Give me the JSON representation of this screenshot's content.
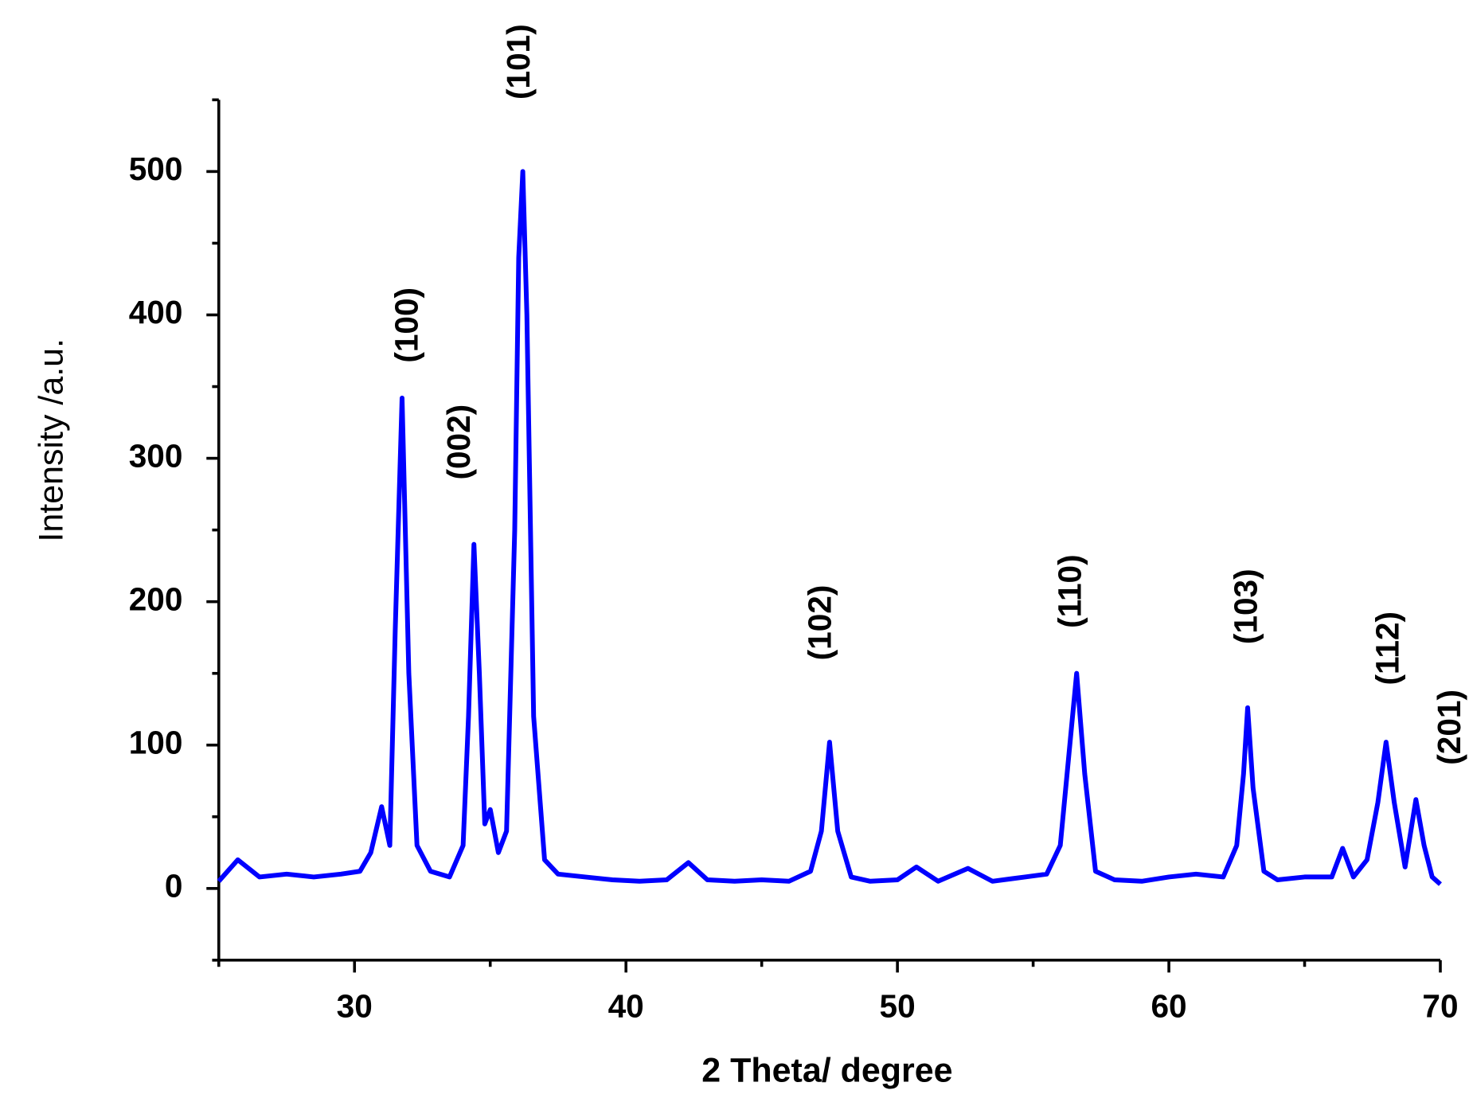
{
  "chart_data": {
    "type": "line",
    "xlabel": "2 Theta/ degree",
    "ylabel": "Intensity /a.u.",
    "x": [
      25,
      25.7,
      26.5,
      27.5,
      28.5,
      29.5,
      30.2,
      30.6,
      31.0,
      31.3,
      31.5,
      31.75,
      32.0,
      32.3,
      32.8,
      33.5,
      34.0,
      34.2,
      34.4,
      34.6,
      34.8,
      35.0,
      35.3,
      35.6,
      35.9,
      36.05,
      36.2,
      36.35,
      36.6,
      37.0,
      37.5,
      38.5,
      39.5,
      40.5,
      41.5,
      42.3,
      43.0,
      44.0,
      45.0,
      46.0,
      46.8,
      47.2,
      47.5,
      47.8,
      48.3,
      49.0,
      50.0,
      50.7,
      51.5,
      52.6,
      53.5,
      54.7,
      55.5,
      56.0,
      56.3,
      56.6,
      56.9,
      57.3,
      58.0,
      59.0,
      60.0,
      61.0,
      62.0,
      62.5,
      62.75,
      62.9,
      63.1,
      63.5,
      64.0,
      65.0,
      66.0,
      66.4,
      66.8,
      67.3,
      67.7,
      68.0,
      68.3,
      68.7,
      69.1,
      69.4,
      69.7,
      70.0
    ],
    "series": [
      {
        "color": "#0000ff",
        "values": [
          5,
          20,
          8,
          10,
          8,
          10,
          12,
          25,
          57,
          30,
          180,
          342,
          150,
          30,
          12,
          8,
          30,
          120,
          240,
          150,
          45,
          55,
          25,
          40,
          250,
          440,
          500,
          400,
          120,
          20,
          10,
          8,
          6,
          5,
          6,
          18,
          6,
          5,
          6,
          5,
          12,
          40,
          102,
          40,
          8,
          5,
          6,
          15,
          5,
          14,
          5,
          8,
          10,
          30,
          90,
          150,
          80,
          12,
          6,
          5,
          8,
          10,
          8,
          30,
          80,
          126,
          70,
          12,
          6,
          8,
          8,
          28,
          8,
          20,
          60,
          102,
          60,
          15,
          62,
          30,
          8,
          3
        ]
      }
    ],
    "annotations": [
      "(100)",
      "(002)",
      "(101)",
      "(102)",
      "(110)",
      "(103)",
      "(112)",
      "(201)"
    ],
    "xlim": [
      25,
      70
    ],
    "xticks": [
      30,
      40,
      50,
      60,
      70
    ],
    "xminorticks": [
      25,
      35,
      45,
      55,
      65
    ],
    "ylim": [
      -50,
      550
    ],
    "yticks": [
      0,
      100,
      200,
      300,
      400,
      500
    ],
    "yminorticks": [
      -50,
      50,
      150,
      250,
      350,
      450,
      550
    ]
  }
}
